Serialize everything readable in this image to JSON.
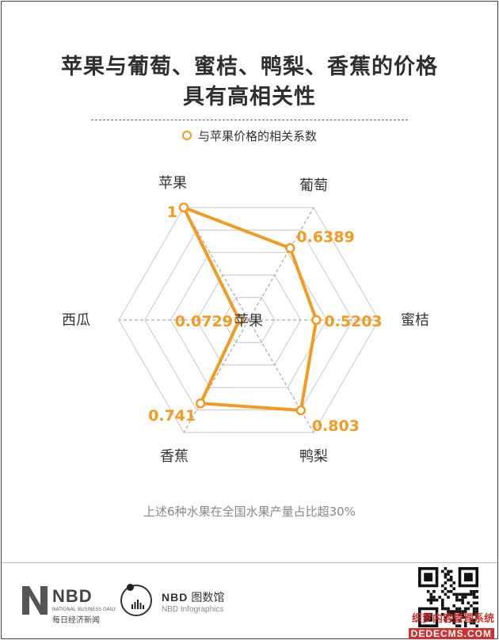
{
  "header": {
    "title_line1": "苹果与葡萄、蜜桔、鸭梨、香蕉的价格",
    "title_line2": "具有高相关性"
  },
  "legend": {
    "label": "与苹果价格的相关系数"
  },
  "chart_data": {
    "type": "radar",
    "axes": [
      "苹果",
      "葡萄",
      "蜜桔",
      "鸭梨",
      "香蕉",
      "西瓜"
    ],
    "series": [
      {
        "name": "与苹果价格的相关系数",
        "values": [
          1,
          0.6389,
          0.5203,
          0.803,
          0.741,
          0.0729
        ]
      }
    ],
    "value_labels": [
      "1",
      "0.6389",
      "0.5203",
      "0.803",
      "0.741",
      "0.0729"
    ],
    "center_label": "苹果",
    "range": [
      0,
      1
    ],
    "rings": 5,
    "color": "#f39a21"
  },
  "note": "上述6种水果在全国水果产量占比超30%",
  "footer": {
    "nbd_logo": "NBD",
    "nbd_sub": "NATIONAL BUSINESS DAILY",
    "nbd_cn": "每日经济新闻",
    "infographics_brand": "NBD",
    "infographics_cn": "图数馆",
    "infographics_sub": "NBD Infographics",
    "watermark_line1": "织梦内容管理系统",
    "watermark_line2": "DEDECMS.COM"
  }
}
